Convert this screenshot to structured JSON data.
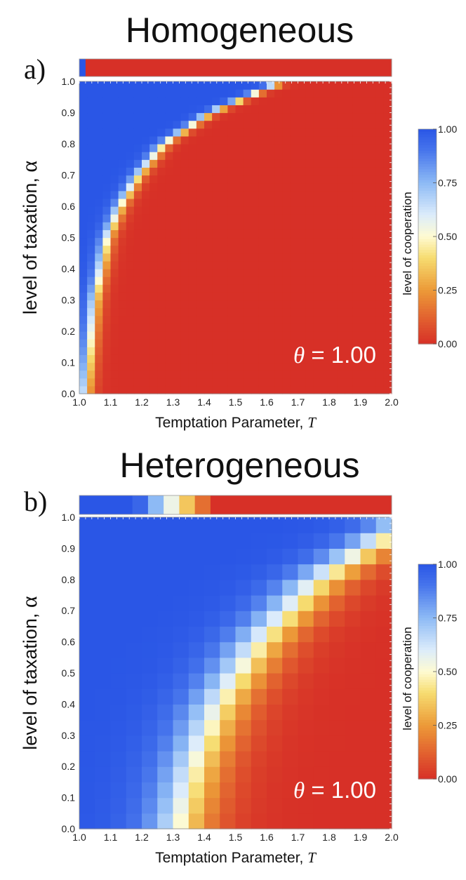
{
  "chart_data": [
    {
      "type": "heatmap",
      "panel_label": "a)",
      "title": "Homogeneous",
      "xlabel_text": "Temptation Parameter, ",
      "xlabel_var": "T",
      "ylabel_text": "level of taxation, ",
      "ylabel_var": "α",
      "xlim": [
        1.0,
        2.0
      ],
      "ylim": [
        0.0,
        1.0
      ],
      "x_ticks": [
        "1.0",
        "1.1",
        "1.2",
        "1.3",
        "1.4",
        "1.5",
        "1.6",
        "1.7",
        "1.8",
        "1.9",
        "2.0"
      ],
      "y_ticks": [
        "0.0",
        "0.1",
        "0.2",
        "0.3",
        "0.4",
        "0.5",
        "0.6",
        "0.7",
        "0.8",
        "0.9",
        "1.0"
      ],
      "annotation_symbol": "θ",
      "annotation_value": " = 1.00",
      "grid_resolution": 40,
      "model": {
        "kind": "homogeneous",
        "boundary_alpha": [
          0.0,
          0.3,
          0.4,
          0.5,
          0.6,
          0.7,
          0.8,
          0.9,
          1.0
        ],
        "boundary_T": [
          1.02,
          1.05,
          1.07,
          1.09,
          1.13,
          1.19,
          1.27,
          1.42,
          1.65
        ],
        "transition_width": 0.03
      },
      "top_strip": [
        {
          "T_from": 1.0,
          "T_to": 1.02,
          "cooperation": 1.0
        },
        {
          "T_from": 1.02,
          "T_to": 2.0,
          "cooperation": 0.0
        }
      ],
      "colorbar": {
        "label": "level of cooperation",
        "ticks": [
          "0.00",
          "0.25",
          "0.50",
          "0.75",
          "1.00"
        ]
      }
    },
    {
      "type": "heatmap",
      "panel_label": "b)",
      "title": "Heterogeneous",
      "xlabel_text": "Temptation Parameter, ",
      "xlabel_var": "T",
      "ylabel_text": "level of taxation, ",
      "ylabel_var": "α",
      "xlim": [
        1.0,
        2.0
      ],
      "ylim": [
        0.0,
        1.0
      ],
      "x_ticks": [
        "1.0",
        "1.1",
        "1.2",
        "1.3",
        "1.4",
        "1.5",
        "1.6",
        "1.7",
        "1.8",
        "1.9",
        "2.0"
      ],
      "y_ticks": [
        "0.0",
        "0.1",
        "0.2",
        "0.3",
        "0.4",
        "0.5",
        "0.6",
        "0.7",
        "0.8",
        "0.9",
        "1.0"
      ],
      "annotation_symbol": "θ",
      "annotation_value": " = 1.00",
      "grid_resolution": 20,
      "model": {
        "kind": "heterogeneous",
        "boundary_alpha": [
          0.0,
          0.2,
          0.4,
          0.6,
          0.8,
          1.0
        ],
        "boundary_T": [
          1.32,
          1.37,
          1.45,
          1.58,
          1.77,
          2.08
        ],
        "transition_width": 0.14
      },
      "top_strip": [
        {
          "T_from": 1.0,
          "T_to": 1.17,
          "cooperation": 1.0
        },
        {
          "T_from": 1.17,
          "T_to": 1.22,
          "cooperation": 0.95
        },
        {
          "T_from": 1.22,
          "T_to": 1.27,
          "cooperation": 0.75
        },
        {
          "T_from": 1.27,
          "T_to": 1.32,
          "cooperation": 0.55
        },
        {
          "T_from": 1.32,
          "T_to": 1.37,
          "cooperation": 0.35
        },
        {
          "T_from": 1.37,
          "T_to": 1.42,
          "cooperation": 0.15
        },
        {
          "T_from": 1.42,
          "T_to": 2.0,
          "cooperation": 0.0
        }
      ],
      "colorbar": {
        "label": "level of cooperation",
        "ticks": [
          "0.00",
          "0.25",
          "0.50",
          "0.75",
          "1.00"
        ]
      }
    }
  ],
  "colors": {
    "scale": [
      {
        "v": 0.0,
        "c": "#d73027"
      },
      {
        "v": 0.1,
        "c": "#e0592e"
      },
      {
        "v": 0.25,
        "c": "#ec9a38"
      },
      {
        "v": 0.4,
        "c": "#f6dc70"
      },
      {
        "v": 0.5,
        "c": "#fefbd2"
      },
      {
        "v": 0.6,
        "c": "#dcecfb"
      },
      {
        "v": 0.75,
        "c": "#8dbaf5"
      },
      {
        "v": 0.9,
        "c": "#4775ec"
      },
      {
        "v": 1.0,
        "c": "#2a56e6"
      }
    ],
    "defection": "#db5a2e",
    "cooperation": "#2b58e6",
    "annotation_text": "#ffffff"
  }
}
